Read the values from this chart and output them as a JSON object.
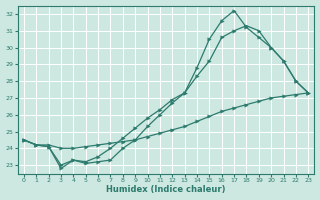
{
  "xlabel": "Humidex (Indice chaleur)",
  "bg_color": "#cce8e0",
  "grid_color": "#ffffff",
  "line_color": "#2d7a6e",
  "xlim": [
    -0.5,
    23.5
  ],
  "ylim": [
    22.5,
    32.5
  ],
  "xticks": [
    0,
    1,
    2,
    3,
    4,
    5,
    6,
    7,
    8,
    9,
    10,
    11,
    12,
    13,
    14,
    15,
    16,
    17,
    18,
    19,
    20,
    21,
    22,
    23
  ],
  "yticks": [
    23,
    24,
    25,
    26,
    27,
    28,
    29,
    30,
    31,
    32
  ],
  "line_straight_x": [
    0,
    1,
    2,
    3,
    4,
    5,
    6,
    7,
    8,
    9,
    10,
    11,
    12,
    13,
    14,
    15,
    16,
    17,
    18,
    19,
    20,
    21,
    22,
    23
  ],
  "line_straight_y": [
    24.5,
    24.2,
    24.2,
    24.0,
    24.0,
    24.1,
    24.2,
    24.3,
    24.4,
    24.5,
    24.7,
    24.9,
    25.1,
    25.3,
    25.6,
    25.9,
    26.2,
    26.4,
    26.6,
    26.8,
    27.0,
    27.1,
    27.2,
    27.3
  ],
  "line_mid_x": [
    0,
    1,
    2,
    3,
    4,
    5,
    6,
    7,
    8,
    9,
    10,
    11,
    12,
    13,
    14,
    15,
    16,
    17,
    18,
    19,
    20,
    21,
    22,
    23
  ],
  "line_mid_y": [
    24.5,
    24.2,
    24.1,
    23.0,
    23.3,
    23.2,
    23.5,
    24.0,
    24.6,
    25.2,
    25.8,
    26.3,
    26.9,
    27.3,
    28.3,
    29.2,
    30.6,
    31.0,
    31.3,
    31.0,
    30.0,
    29.2,
    28.0,
    27.3
  ],
  "line_peak_x": [
    0,
    1,
    2,
    3,
    4,
    5,
    6,
    7,
    8,
    9,
    10,
    11,
    12,
    13,
    14,
    15,
    16,
    17,
    18,
    19,
    20,
    21,
    22,
    23
  ],
  "line_peak_y": [
    24.5,
    24.2,
    24.1,
    22.8,
    23.3,
    23.1,
    23.2,
    23.3,
    24.0,
    24.5,
    25.3,
    26.0,
    26.7,
    27.3,
    28.8,
    30.5,
    31.6,
    32.2,
    31.2,
    30.6,
    30.0,
    29.2,
    28.0,
    27.3
  ]
}
